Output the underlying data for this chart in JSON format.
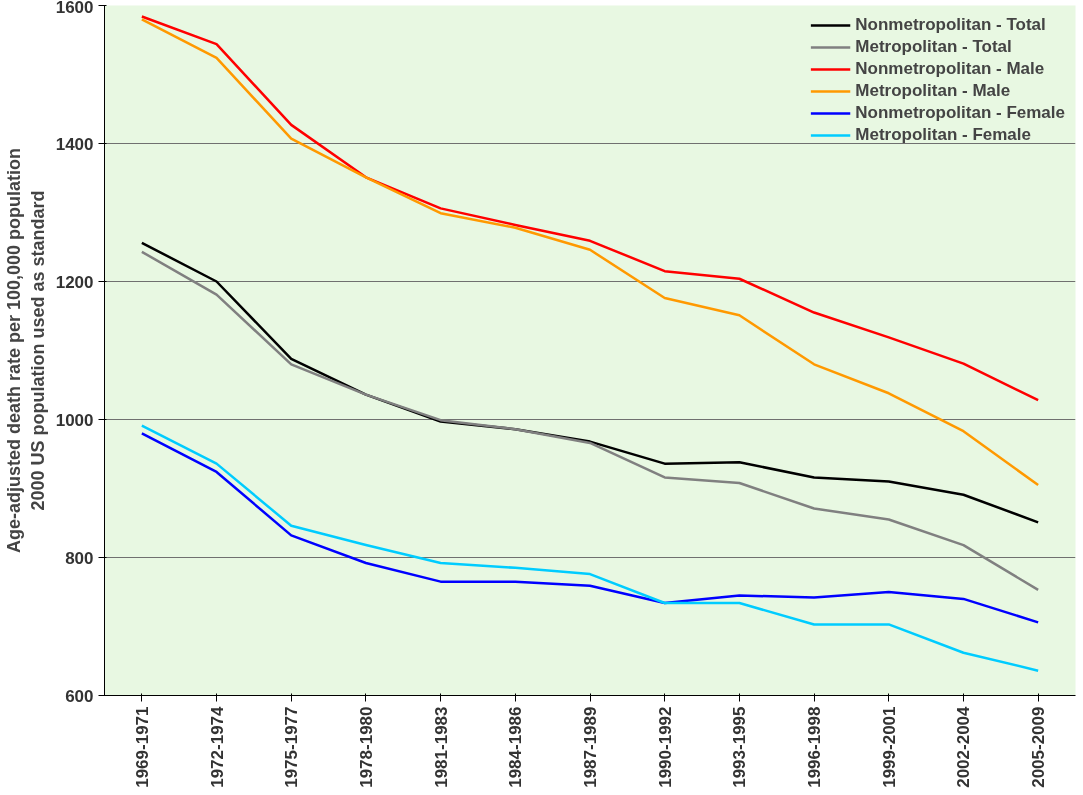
{
  "chart_data": {
    "type": "line",
    "ylabel": "Age-adjusted death rate per 100,000 population\n2000 US population used as standard",
    "categories": [
      "1969-1971",
      "1972-1974",
      "1975-1977",
      "1978-1980",
      "1981-1983",
      "1984-1986",
      "1987-1989",
      "1990-1992",
      "1993-1995",
      "1996-1998",
      "1999-2001",
      "2002-2004",
      "2005-2009"
    ],
    "series": [
      {
        "name": "Nonmetropolitan - Total",
        "color": "#000000",
        "values": [
          1256,
          1200,
          1088,
          1036,
          997,
          986,
          968,
          936,
          938,
          916,
          910,
          891,
          851
        ]
      },
      {
        "name": "Metropolitan - Total",
        "color": "#808080",
        "values": [
          1243,
          1181,
          1080,
          1036,
          999,
          986,
          966,
          916,
          908,
          871,
          855,
          818,
          753
        ]
      },
      {
        "name": "Nonmetropolitan - Male",
        "color": "#ff0000",
        "values": [
          1584,
          1544,
          1427,
          1351,
          1306,
          1282,
          1259,
          1215,
          1204,
          1155,
          1119,
          1081,
          1028
        ]
      },
      {
        "name": "Metropolitan - Male",
        "color": "#ff9900",
        "values": [
          1580,
          1524,
          1407,
          1351,
          1299,
          1278,
          1246,
          1176,
          1151,
          1080,
          1038,
          983,
          905
        ]
      },
      {
        "name": "Nonmetropolitan - Female",
        "color": "#0000ff",
        "values": [
          980,
          924,
          832,
          792,
          765,
          765,
          759,
          734,
          745,
          742,
          750,
          740,
          706
        ]
      },
      {
        "name": "Metropolitan - Female",
        "color": "#00ccff",
        "values": [
          991,
          936,
          846,
          818,
          792,
          785,
          776,
          734,
          734,
          703,
          703,
          662,
          636
        ]
      }
    ],
    "ylim": [
      600,
      1600
    ],
    "yticks": [
      600,
      800,
      1000,
      1200,
      1400,
      1600
    ],
    "grid": "y",
    "legend": "top right",
    "marker": "none",
    "line_style": "solid"
  }
}
